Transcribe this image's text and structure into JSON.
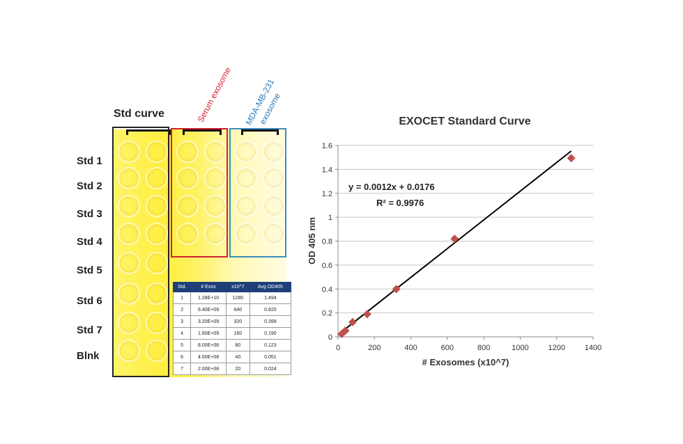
{
  "plate": {
    "title": "Std curve",
    "serum_label": "Serum exosome",
    "mda_label_1": "MDA-MB-231",
    "mda_label_2": "exosome",
    "rows": [
      "Std 1",
      "Std 2",
      "Std 3",
      "Std 4",
      "Std 5",
      "Std 6",
      "Std 7",
      "Blnk"
    ],
    "colors": {
      "std_box": "#222222",
      "serum_box": "#d02030",
      "mda_box": "#3a8ac0",
      "serum_text": "#d02030",
      "mda_text": "#2a7ab8"
    }
  },
  "table": {
    "headers": [
      "Std.",
      "# Exos",
      "x10^7",
      "Avg OD405"
    ],
    "rows": [
      [
        "1",
        "1.28E+10",
        "1280",
        "1.494"
      ],
      [
        "2",
        "6.40E+09",
        "640",
        "0.820"
      ],
      [
        "3",
        "3.20E+09",
        "320",
        "0.399"
      ],
      [
        "4",
        "1.60E+09",
        "160",
        "0.190"
      ],
      [
        "5",
        "8.00E+08",
        "80",
        "0.123"
      ],
      [
        "6",
        "4.00E+08",
        "40",
        "0.051"
      ],
      [
        "7",
        "2.00E+08",
        "20",
        "0.024"
      ]
    ]
  },
  "chart_data": {
    "type": "scatter",
    "title": "EXOCET Standard Curve",
    "xlabel": "# Exosomes (x10^7)",
    "ylabel": "OD 405 nm",
    "xlim": [
      0,
      1400
    ],
    "ylim": [
      0,
      1.6
    ],
    "x_ticks": [
      "0",
      "200",
      "400",
      "600",
      "800",
      "1000",
      "1200",
      "1400"
    ],
    "y_ticks": [
      "0",
      "0.2",
      "0.4",
      "0.6",
      "0.8",
      "1",
      "1.2",
      "1.4",
      "1.6"
    ],
    "grid": true,
    "x": [
      1280,
      640,
      320,
      160,
      80,
      40,
      20
    ],
    "y": [
      1.494,
      0.82,
      0.399,
      0.19,
      0.123,
      0.051,
      0.024
    ],
    "trendline": {
      "slope": 0.0012,
      "intercept": 0.0176
    },
    "equation": "y = 0.0012x + 0.0176",
    "r2_label": "R² = 0.9976",
    "marker_color": "#c0504d",
    "line_color": "#000000"
  }
}
